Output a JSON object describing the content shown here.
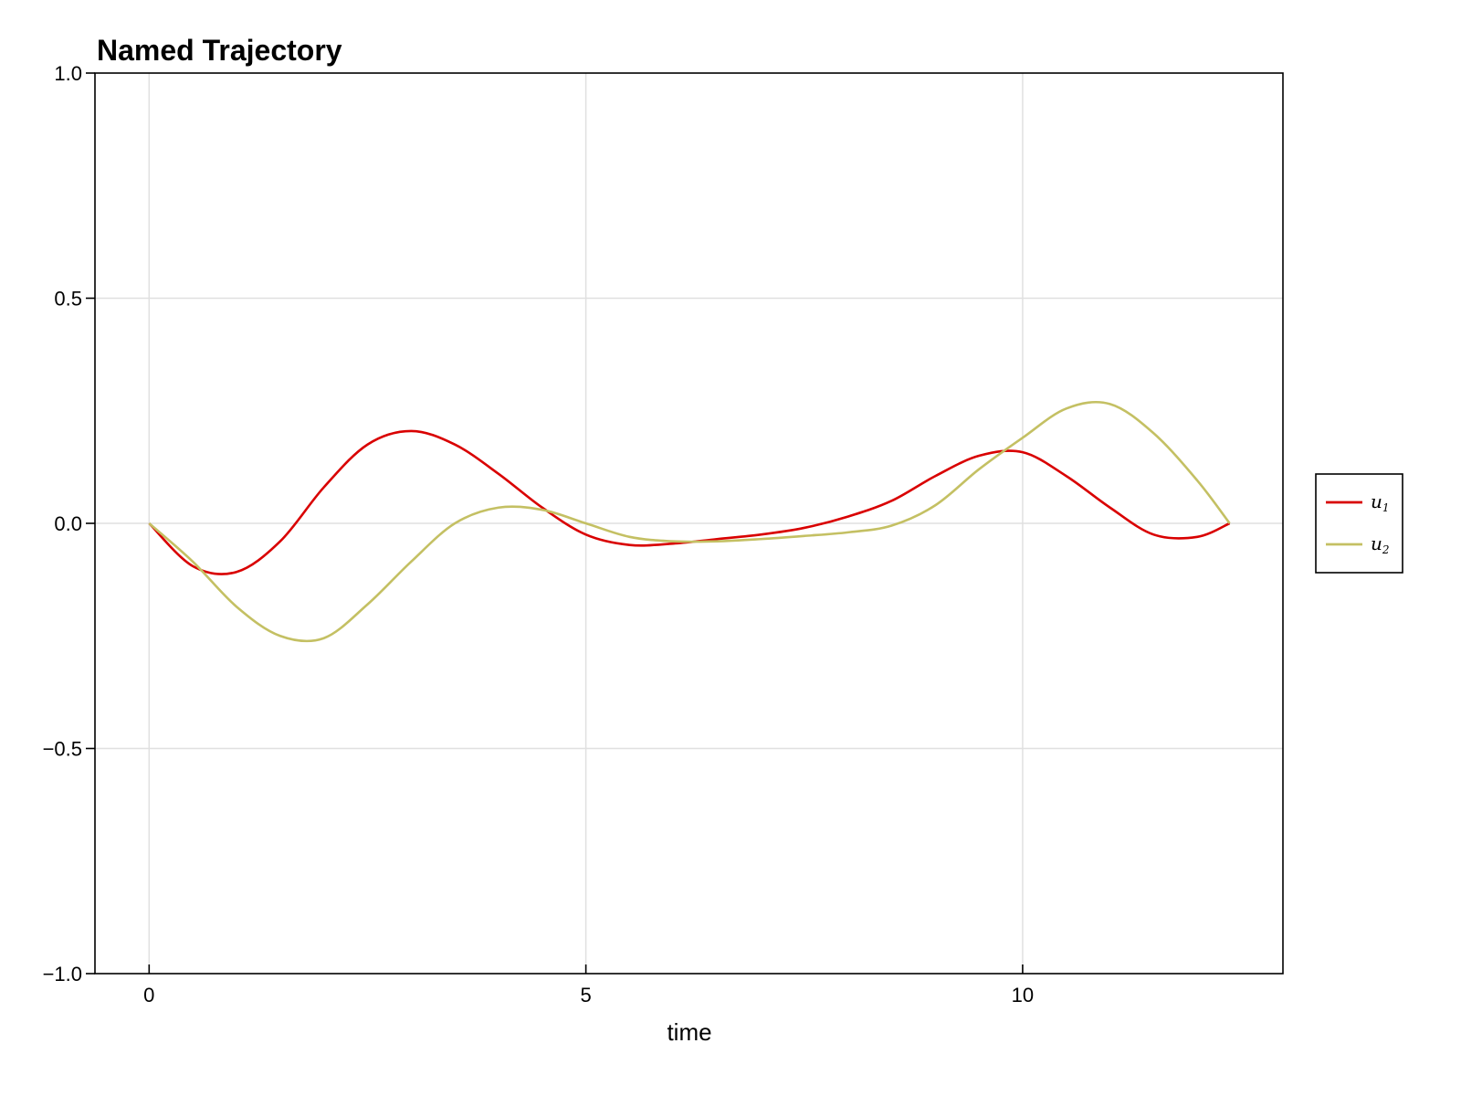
{
  "chart_data": {
    "type": "line",
    "title": "Named Trajectory",
    "xlabel": "time",
    "ylabel": "",
    "xlim": [
      -0.62,
      12.98
    ],
    "ylim": [
      -1.0,
      1.0
    ],
    "xticks": [
      0,
      5,
      10
    ],
    "xtick_labels": [
      "0",
      "5",
      "10"
    ],
    "yticks": [
      1.0,
      0.5,
      0.0,
      -0.5,
      -1.0
    ],
    "ytick_labels": [
      "1.0",
      "0.5",
      "0.0",
      "−0.5",
      "−1.0"
    ],
    "grid": true,
    "legend_position": "right-outside",
    "x": [
      0,
      0.5,
      1.0,
      1.5,
      2.0,
      2.5,
      3.0,
      3.5,
      4.0,
      4.5,
      5.0,
      5.5,
      6.0,
      6.5,
      7.0,
      7.5,
      8.0,
      8.5,
      9.0,
      9.5,
      10.0,
      10.5,
      11.0,
      11.5,
      12.0,
      12.37
    ],
    "series": [
      {
        "name": "u_1",
        "label_main": "u",
        "label_sub": "1",
        "color": "#d90000",
        "values": [
          0.0,
          -0.095,
          -0.108,
          -0.04,
          0.08,
          0.175,
          0.205,
          0.175,
          0.11,
          0.035,
          -0.025,
          -0.048,
          -0.045,
          -0.035,
          -0.025,
          -0.01,
          0.015,
          0.05,
          0.105,
          0.15,
          0.158,
          0.105,
          0.035,
          -0.025,
          -0.03,
          0.0
        ]
      },
      {
        "name": "u_2",
        "label_main": "u",
        "label_sub": "2",
        "color": "#c4c063",
        "values": [
          0.0,
          -0.085,
          -0.185,
          -0.25,
          -0.255,
          -0.18,
          -0.085,
          0.0,
          0.035,
          0.03,
          0.0,
          -0.03,
          -0.04,
          -0.04,
          -0.035,
          -0.028,
          -0.02,
          -0.005,
          0.04,
          0.12,
          0.19,
          0.255,
          0.265,
          0.2,
          0.095,
          0.0
        ]
      }
    ]
  },
  "legend": {
    "items": [
      {
        "main": "u",
        "sub": "1"
      },
      {
        "main": "u",
        "sub": "2"
      }
    ]
  }
}
